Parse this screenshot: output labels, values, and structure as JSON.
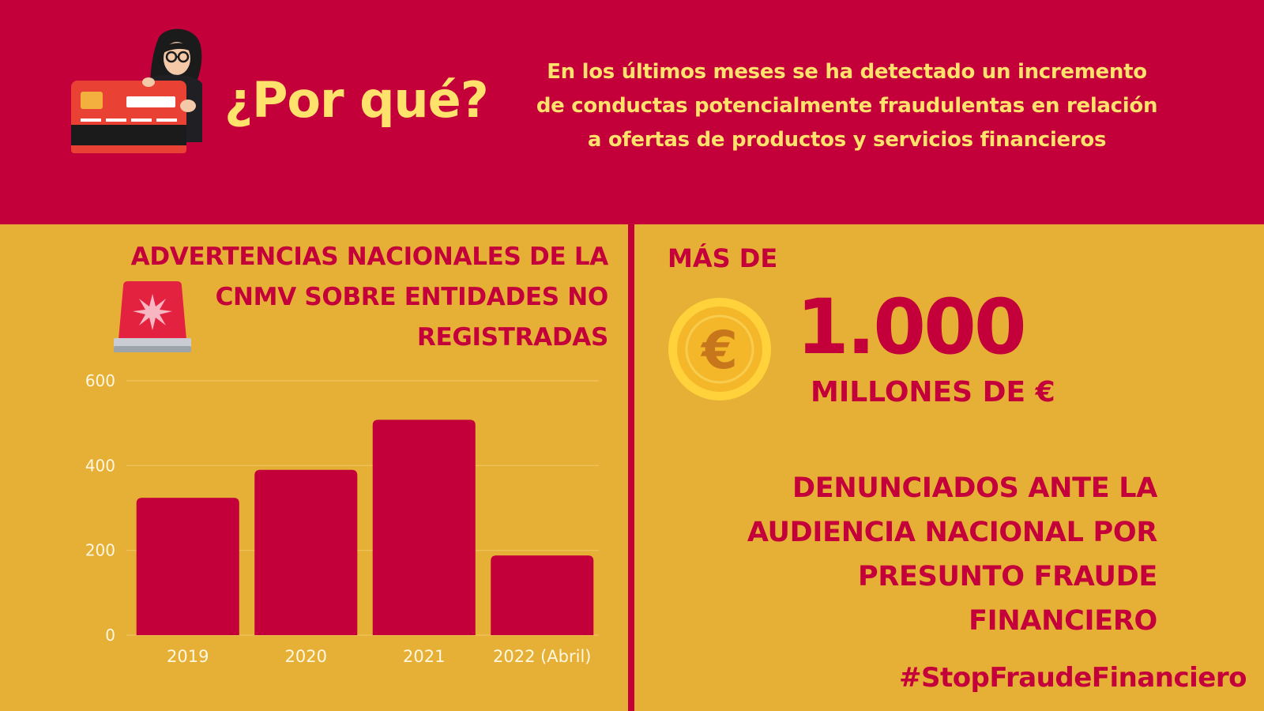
{
  "header": {
    "title": "¿Por qué?",
    "text": "En los últimos meses se ha detectado un incremento de conductas potencialmente fraudulentas en relación a ofertas de productos y servicios financieros"
  },
  "left": {
    "title": "ADVERTENCIAS NACIONALES DE LA CNMV SOBRE ENTIDADES NO REGISTRADAS"
  },
  "right": {
    "mas_de": "MÁS DE",
    "amount": "1.000",
    "unit": "MILLONES DE €",
    "description": "DENUNCIADOS ANTE LA AUDIENCIA NACIONAL POR PRESUNTO FRAUDE FINANCIERO",
    "hashtag": "#StopFraudeFinanciero"
  },
  "colors": {
    "primary": "#c4003b",
    "background": "#e6b036",
    "highlight": "#ffe26b"
  },
  "icons": [
    "card-thief-icon",
    "siren-icon",
    "euro-coin-icon"
  ],
  "chart_data": {
    "type": "bar",
    "title": "ADVERTENCIAS NACIONALES DE LA CNMV SOBRE ENTIDADES NO REGISTRADAS",
    "categories": [
      "2019",
      "2020",
      "2021",
      "2022 (Abril)"
    ],
    "values": [
      324,
      390,
      508,
      188
    ],
    "ylim": [
      0,
      600
    ],
    "yticks": [
      0,
      200,
      400,
      600
    ],
    "xlabel": "",
    "ylabel": "",
    "grid": true,
    "bar_color": "#c4003b"
  }
}
